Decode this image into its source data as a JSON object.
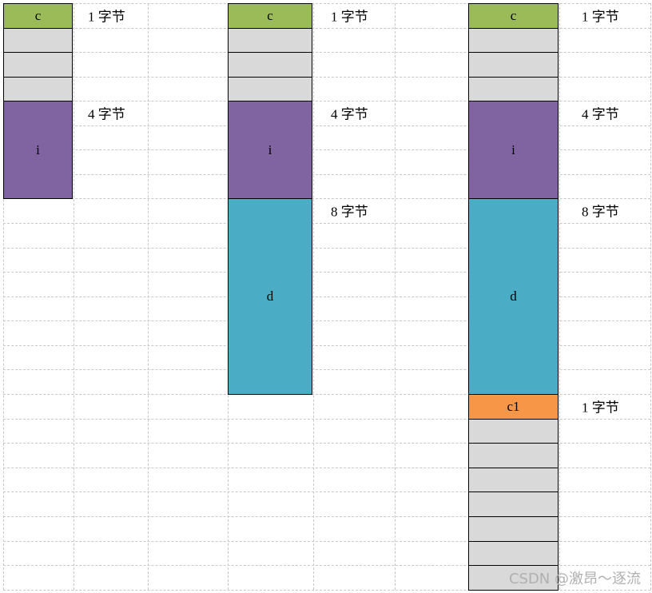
{
  "colors": {
    "char": "#9bbb59",
    "int": "#8064a2",
    "double": "#4bacc6",
    "char2": "#f79646",
    "padding": "#d9d9d9"
  },
  "layouts": [
    {
      "id": "struct1",
      "blocks": [
        {
          "name": "c",
          "kind": "char",
          "label": "c",
          "size_label": "1 字节"
        },
        {
          "name": "pad",
          "kind": "padding",
          "count": 3
        },
        {
          "name": "i",
          "kind": "int",
          "label": "i",
          "size_label": "4 字节"
        }
      ]
    },
    {
      "id": "struct2",
      "blocks": [
        {
          "name": "c",
          "kind": "char",
          "label": "c",
          "size_label": "1 字节"
        },
        {
          "name": "pad",
          "kind": "padding",
          "count": 3
        },
        {
          "name": "i",
          "kind": "int",
          "label": "i",
          "size_label": "4 字节"
        },
        {
          "name": "d",
          "kind": "double",
          "label": "d",
          "size_label": "8 字节"
        }
      ]
    },
    {
      "id": "struct3",
      "blocks": [
        {
          "name": "c",
          "kind": "char",
          "label": "c",
          "size_label": "1 字节"
        },
        {
          "name": "pad",
          "kind": "padding",
          "count": 3
        },
        {
          "name": "i",
          "kind": "int",
          "label": "i",
          "size_label": "4 字节"
        },
        {
          "name": "d",
          "kind": "double",
          "label": "d",
          "size_label": "8 字节"
        },
        {
          "name": "c1",
          "kind": "char2",
          "label": "c1",
          "size_label": "1 字节"
        },
        {
          "name": "pad",
          "kind": "padding",
          "count": 7
        }
      ]
    }
  ],
  "watermark": "CSDN @激昂～逐流"
}
